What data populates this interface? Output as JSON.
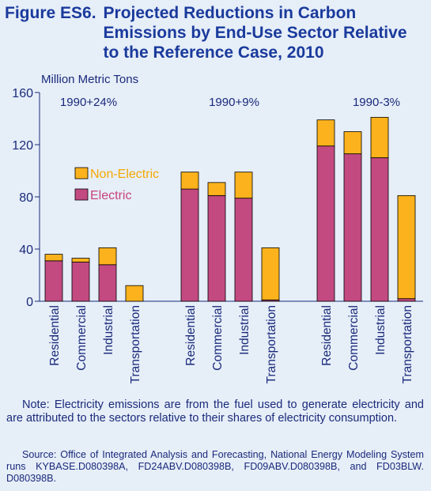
{
  "figure": {
    "number": "Figure ES6.",
    "title": "Projected Reductions in Carbon Emissions by End-Use Sector Relative to the Reference Case, 2010"
  },
  "chart_data": {
    "type": "bar",
    "stacked": true,
    "ylabel": "Million Metric Tons",
    "ylim": [
      0,
      160
    ],
    "yticks": [
      0,
      40,
      80,
      120,
      160
    ],
    "ytick_labels": [
      "0",
      "40",
      "80",
      "120",
      "160"
    ],
    "groups": [
      {
        "label": "1990+24%",
        "categories": [
          "Residential",
          "Commercial",
          "Industrial",
          "Transportation"
        ],
        "electric": [
          31,
          30,
          28,
          0
        ],
        "non_electric": [
          5,
          3,
          13,
          12
        ]
      },
      {
        "label": "1990+9%",
        "categories": [
          "Residential",
          "Commercial",
          "Industrial",
          "Transportation"
        ],
        "electric": [
          86,
          81,
          79,
          1
        ],
        "non_electric": [
          13,
          10,
          20,
          40
        ]
      },
      {
        "label": "1990-3%",
        "categories": [
          "Residential",
          "Commercial",
          "Industrial",
          "Transportation"
        ],
        "electric": [
          119,
          113,
          110,
          2
        ],
        "non_electric": [
          20,
          17,
          31,
          79
        ]
      }
    ],
    "legend": {
      "placement": "left",
      "items": [
        {
          "name": "Non-Electric",
          "color": "#fbb21c",
          "text_color": "#f5a800"
        },
        {
          "name": "Electric",
          "color": "#c24a80",
          "text_color": "#c8437a"
        }
      ]
    },
    "grid": false
  },
  "note": "Note: Electricity emissions are from the fuel used to generate electricity and are attributed to the sectors relative to their shares of electricity consumption.",
  "source": "Source: Office of Integrated Analysis and Forecasting, National Energy Modeling System runs KYBASE.D080398A, FD24ABV.D080398B, FD09ABV.D080398B, and FD03BLW. D080398B."
}
